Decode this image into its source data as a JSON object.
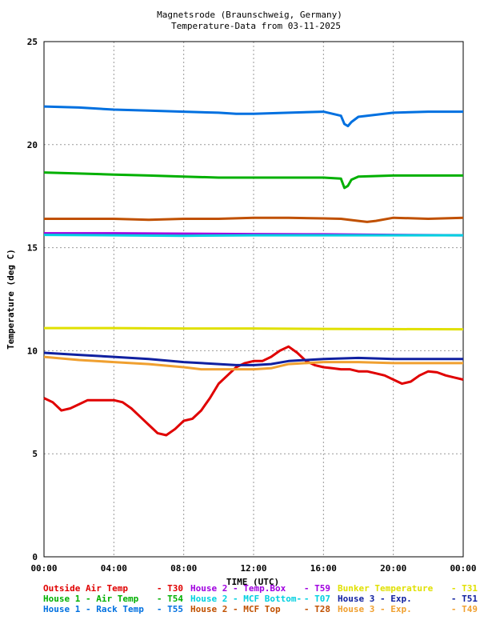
{
  "chart_data": {
    "type": "line",
    "title": "Magnetsrode (Braunschweig, Germany)",
    "subtitle": "Temperature-Data from 03-11-2025",
    "xlabel": "TIME (UTC)",
    "ylabel": "Temperature (deg C)",
    "xlim": [
      0,
      24
    ],
    "ylim": [
      0,
      25
    ],
    "x_ticks": [
      "00:00",
      "04:00",
      "08:00",
      "12:00",
      "16:00",
      "20:00",
      "00:00"
    ],
    "y_ticks": [
      "0",
      "5",
      "10",
      "15",
      "20",
      "25"
    ],
    "grid": true,
    "series": [
      {
        "name": "Outside Air Temp",
        "code": "T30",
        "color": "#e00000",
        "x": [
          0,
          0.5,
          1,
          1.5,
          2,
          2.5,
          3,
          3.5,
          4,
          4.5,
          5,
          5.5,
          6,
          6.5,
          7,
          7.5,
          8,
          8.5,
          9,
          9.5,
          10,
          10.5,
          11,
          11.5,
          12,
          12.5,
          13,
          13.5,
          14,
          14.5,
          15,
          15.5,
          16,
          16.5,
          17,
          17.5,
          18,
          18.5,
          19,
          19.5,
          20,
          20.5,
          21,
          21.5,
          22,
          22.5,
          23,
          23.5,
          24
        ],
        "y": [
          7.7,
          7.5,
          7.1,
          7.2,
          7.4,
          7.6,
          7.6,
          7.6,
          7.6,
          7.5,
          7.2,
          6.8,
          6.4,
          6.0,
          5.9,
          6.2,
          6.6,
          6.7,
          7.1,
          7.7,
          8.4,
          8.8,
          9.2,
          9.4,
          9.5,
          9.5,
          9.7,
          10.0,
          10.2,
          9.9,
          9.5,
          9.3,
          9.2,
          9.15,
          9.1,
          9.1,
          9.0,
          9.0,
          8.9,
          8.8,
          8.6,
          8.4,
          8.5,
          8.8,
          9.0,
          8.95,
          8.8,
          8.7,
          8.6
        ]
      },
      {
        "name": "House 1 - Air  Temp",
        "code": "T54",
        "color": "#00b000",
        "x": [
          0,
          2,
          4,
          6,
          8,
          10,
          12,
          14,
          16,
          17,
          17.2,
          17.4,
          17.6,
          18,
          20,
          22,
          24
        ],
        "y": [
          18.65,
          18.6,
          18.55,
          18.5,
          18.45,
          18.4,
          18.4,
          18.4,
          18.4,
          18.35,
          17.9,
          18.0,
          18.3,
          18.45,
          18.5,
          18.5,
          18.5
        ]
      },
      {
        "name": "House 1 - Rack Temp",
        "code": "T55",
        "color": "#0070e0",
        "x": [
          0,
          2,
          4,
          6,
          8,
          10,
          11,
          12,
          14,
          16,
          17,
          17.2,
          17.4,
          17.6,
          18,
          20,
          22,
          24
        ],
        "y": [
          21.85,
          21.8,
          21.7,
          21.65,
          21.6,
          21.55,
          21.5,
          21.5,
          21.55,
          21.6,
          21.4,
          21.0,
          20.9,
          21.1,
          21.35,
          21.55,
          21.6,
          21.6
        ]
      },
      {
        "name": "House 2 - Temp.Box",
        "code": "T59",
        "color": "#a000e0",
        "x": [
          0,
          4,
          8,
          12,
          16,
          20,
          24
        ],
        "y": [
          15.7,
          15.7,
          15.68,
          15.66,
          15.65,
          15.62,
          15.6
        ]
      },
      {
        "name": "House 2 - MCF Bottom-",
        "code": "T07",
        "color": "#00d0e0",
        "x": [
          0,
          4,
          8,
          12,
          16,
          20,
          24
        ],
        "y": [
          15.62,
          15.6,
          15.58,
          15.6,
          15.6,
          15.6,
          15.6
        ]
      },
      {
        "name": "House 2 - MCF Top",
        "code": "T28",
        "color": "#c05000",
        "x": [
          0,
          2,
          4,
          6,
          8,
          10,
          12,
          14,
          16,
          17,
          18,
          18.5,
          19,
          20,
          22,
          24
        ],
        "y": [
          16.4,
          16.4,
          16.4,
          16.35,
          16.4,
          16.4,
          16.45,
          16.45,
          16.42,
          16.4,
          16.3,
          16.25,
          16.3,
          16.45,
          16.4,
          16.45
        ]
      },
      {
        "name": "Bunker Temperature",
        "code": "T31",
        "color": "#e0e000",
        "x": [
          0,
          4,
          8,
          12,
          16,
          20,
          24
        ],
        "y": [
          11.1,
          11.1,
          11.08,
          11.08,
          11.06,
          11.05,
          11.04
        ]
      },
      {
        "name": "House 3 - Exp.",
        "code": "T51",
        "color": "#1020a0",
        "x": [
          0,
          2,
          4,
          6,
          8,
          10,
          11,
          12,
          13,
          14,
          16,
          18,
          20,
          22,
          24
        ],
        "y": [
          9.9,
          9.8,
          9.7,
          9.6,
          9.45,
          9.35,
          9.3,
          9.3,
          9.35,
          9.5,
          9.6,
          9.65,
          9.6,
          9.6,
          9.6
        ]
      },
      {
        "name": "House 3 - Exp.",
        "code": "T49",
        "color": "#f0a030",
        "x": [
          0,
          2,
          4,
          6,
          8,
          9,
          10,
          12,
          13,
          14,
          16,
          18,
          20,
          22,
          24
        ],
        "y": [
          9.7,
          9.55,
          9.45,
          9.35,
          9.2,
          9.1,
          9.1,
          9.1,
          9.15,
          9.35,
          9.45,
          9.45,
          9.4,
          9.4,
          9.4
        ]
      }
    ]
  }
}
